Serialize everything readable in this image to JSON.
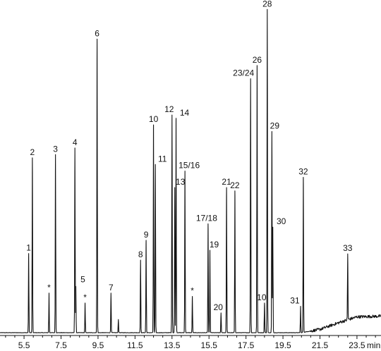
{
  "chart_data": {
    "type": "line",
    "subtype": "chromatogram",
    "x_unit_label": "min",
    "xlim": [
      4.2,
      24.8
    ],
    "x_ticks": [
      5.5,
      7.5,
      9.5,
      11.5,
      13.5,
      15.5,
      17.5,
      19.5,
      21.5,
      23.5
    ],
    "x_tick_labels": [
      "5.5",
      "7.5",
      "9.5",
      "11.5",
      "13.5",
      "15.5",
      "17.5",
      "19.5",
      "21.5",
      "23.5"
    ],
    "ylim": [
      0,
      100
    ],
    "grid": false,
    "baseline_drift": [
      {
        "x": 4.2,
        "y": 0.0
      },
      {
        "x": 20.5,
        "y": 0.0
      },
      {
        "x": 21.5,
        "y": 1.0
      },
      {
        "x": 22.5,
        "y": 3.0
      },
      {
        "x": 23.5,
        "y": 4.8
      },
      {
        "x": 24.8,
        "y": 5.0
      }
    ],
    "peaks": [
      {
        "label": "1",
        "x": 5.75,
        "height": 24
      },
      {
        "label": "2",
        "x": 5.95,
        "height": 53
      },
      {
        "label": "*",
        "x": 6.85,
        "height": 12
      },
      {
        "label": "3",
        "x": 7.2,
        "height": 54
      },
      {
        "label": "4",
        "x": 8.25,
        "height": 56
      },
      {
        "label": "5",
        "x": 8.3,
        "height": 14
      },
      {
        "label": "*",
        "x": 8.8,
        "height": 9
      },
      {
        "label": "6",
        "x": 9.45,
        "height": 89
      },
      {
        "label": "7",
        "x": 10.2,
        "height": 12
      },
      {
        "label": "",
        "x": 10.6,
        "height": 4
      },
      {
        "label": "8",
        "x": 11.8,
        "height": 22
      },
      {
        "label": "9",
        "x": 12.1,
        "height": 28
      },
      {
        "label": "10",
        "x": 12.5,
        "height": 63
      },
      {
        "label": "11",
        "x": 12.6,
        "height": 51
      },
      {
        "label": "12",
        "x": 13.5,
        "height": 66
      },
      {
        "label": "13",
        "x": 13.65,
        "height": 44
      },
      {
        "label": "14",
        "x": 13.72,
        "height": 65
      },
      {
        "label": "15/16",
        "x": 14.2,
        "height": 49
      },
      {
        "label": "*",
        "x": 14.6,
        "height": 11
      },
      {
        "label": "17/18",
        "x": 15.45,
        "height": 33
      },
      {
        "label": "19",
        "x": 15.55,
        "height": 25
      },
      {
        "label": "20",
        "x": 16.15,
        "height": 6
      },
      {
        "label": "21",
        "x": 16.45,
        "height": 44
      },
      {
        "label": "22",
        "x": 16.9,
        "height": 43
      },
      {
        "label": "23/24",
        "x": 17.75,
        "height": 77
      },
      {
        "label": "26",
        "x": 18.1,
        "height": 81
      },
      {
        "label": "10",
        "x": 18.5,
        "height": 9
      },
      {
        "label": "28",
        "x": 18.65,
        "height": 98
      },
      {
        "label": "29",
        "x": 18.9,
        "height": 61
      },
      {
        "label": "30",
        "x": 18.95,
        "height": 32
      },
      {
        "label": "31",
        "x": 20.45,
        "height": 8
      },
      {
        "label": "32",
        "x": 20.6,
        "height": 47
      },
      {
        "label": "33",
        "x": 23.0,
        "height": 20
      }
    ]
  }
}
